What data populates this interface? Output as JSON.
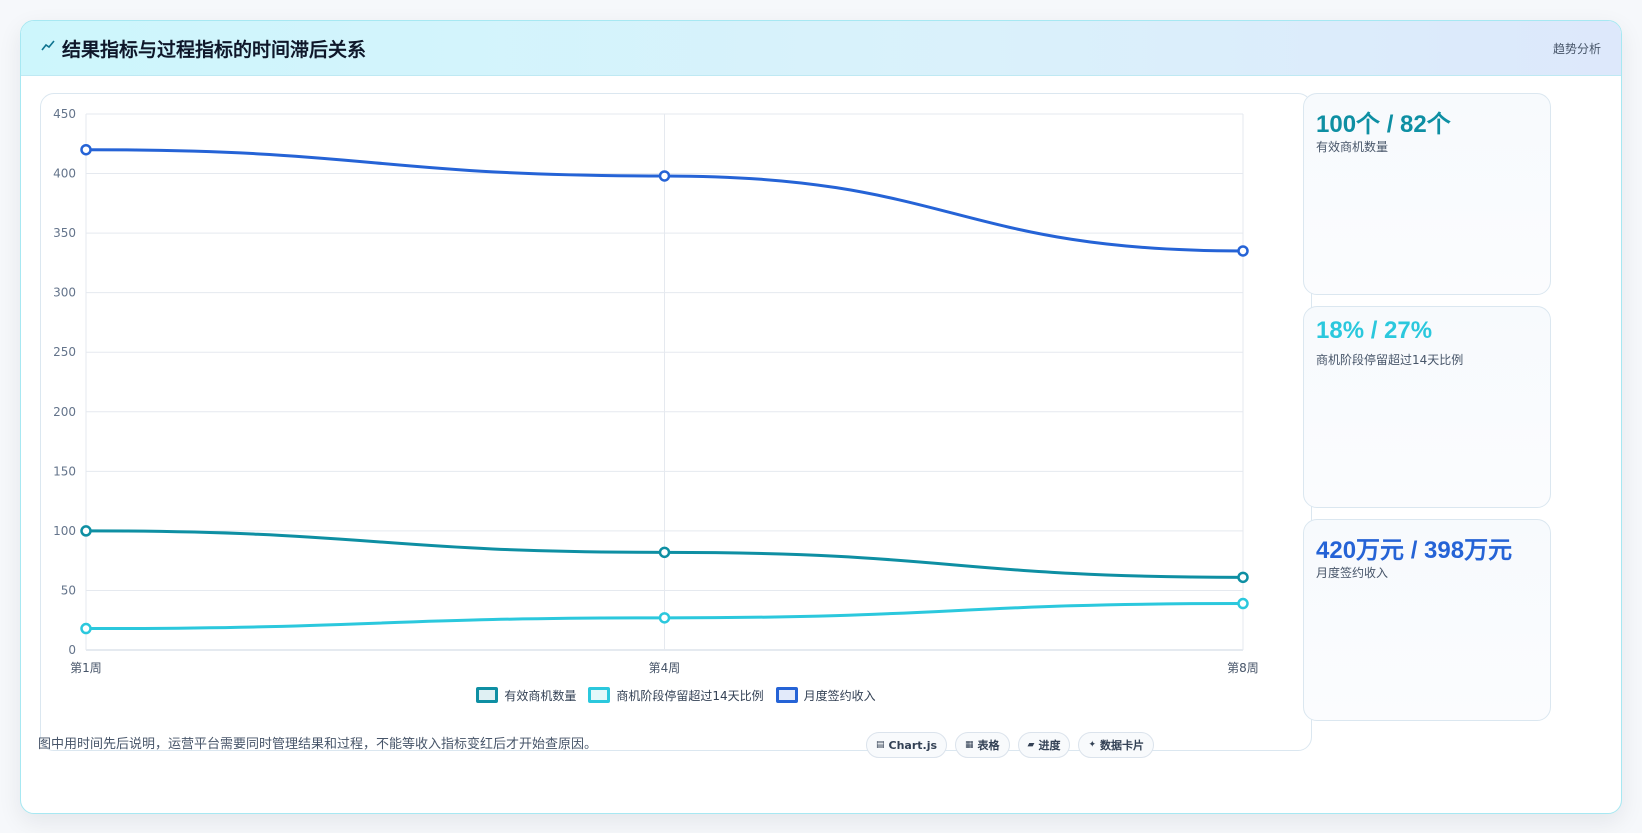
{
  "header": {
    "title": "结果指标与过程指标的时间滞后关系",
    "tag": "趋势分析"
  },
  "chart_data": {
    "type": "line",
    "x": [
      "第1周",
      "第4周",
      "第8周"
    ],
    "y_ticks": [
      0,
      50,
      100,
      150,
      200,
      250,
      300,
      350,
      400,
      450
    ],
    "ylim": [
      0,
      450
    ],
    "grid": true,
    "legend_position": "bottom",
    "series": [
      {
        "name": "有效商机数量",
        "values": [
          100,
          82,
          61
        ],
        "color": "#0e8fa3"
      },
      {
        "name": "商机阶段停留超过14天比例",
        "values": [
          18,
          27,
          39
        ],
        "color": "#2bc8dd"
      },
      {
        "name": "月度签约收入",
        "values": [
          420,
          398,
          335
        ],
        "color": "#2563d6"
      }
    ]
  },
  "stats": [
    {
      "value": "100个 / 82个",
      "label": "有效商机数量",
      "color": "#0e8fa3"
    },
    {
      "value": "18% / 27%",
      "label": "商机阶段停留超过14天比例",
      "color": "#2bc8dd"
    },
    {
      "value": "420万元 / 398万元",
      "label": "月度签约收入",
      "color": "#2563d6"
    }
  ],
  "footer": {
    "note": "图中用时间先后说明，运营平台需要同时管理结果和过程，不能等收入指标变红后才开始查原因。",
    "pills": [
      {
        "icon": "chart-icon",
        "glyph": "▤",
        "label": "Chart.js"
      },
      {
        "icon": "table-icon",
        "glyph": "▦",
        "label": "表格"
      },
      {
        "icon": "progress-icon",
        "glyph": "▰",
        "label": "进度"
      },
      {
        "icon": "card-icon",
        "glyph": "✦",
        "label": "数据卡片"
      }
    ]
  }
}
